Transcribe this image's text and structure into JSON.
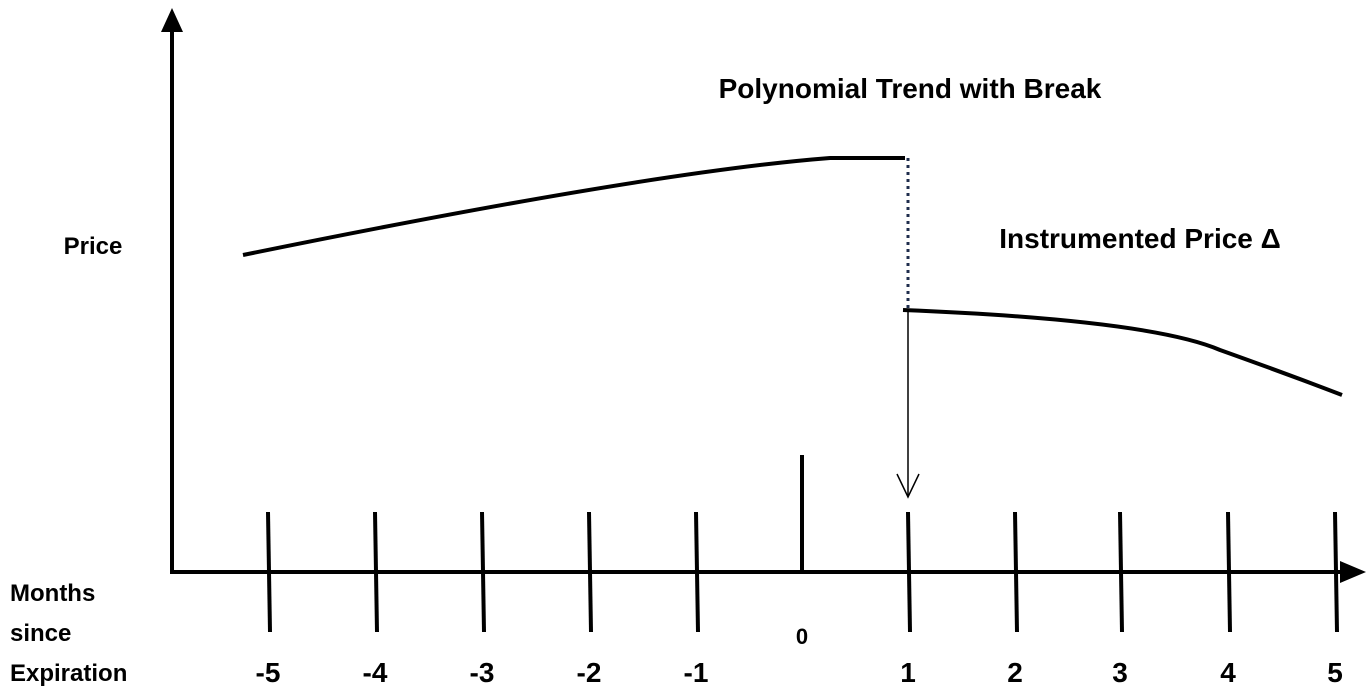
{
  "title": "Polynomial Trend with Break",
  "y_label": "Price",
  "x_label": [
    "Months",
    "since",
    "Expiration"
  ],
  "annotation": "Instrumented Price Δ",
  "tick_labels": [
    "-5",
    "-4",
    "-3",
    "-2",
    "-1",
    "0",
    "1",
    "2",
    "3",
    "4",
    "5"
  ]
}
